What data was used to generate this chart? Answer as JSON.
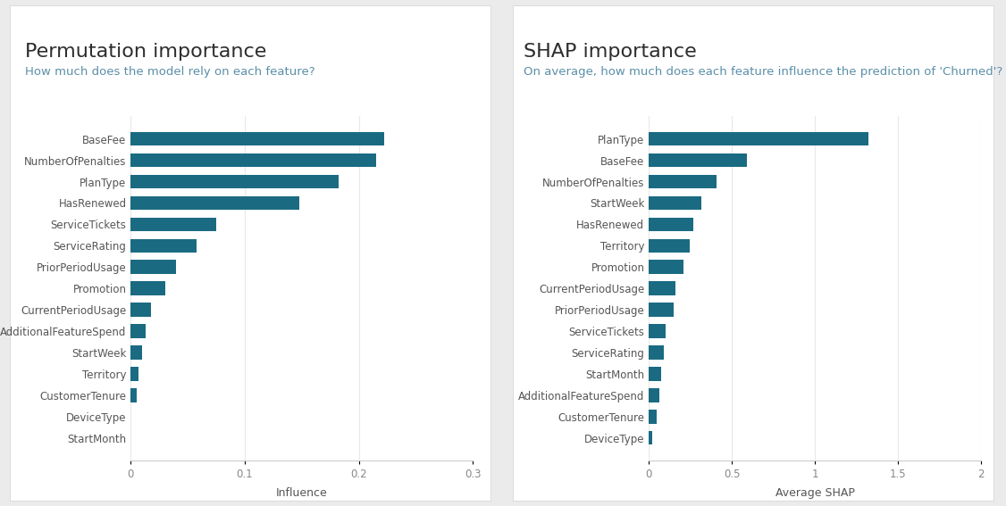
{
  "perm_title": "Permutation importance",
  "perm_subtitle": "How much does the model rely on each feature?",
  "perm_xlabel": "Influence",
  "perm_features": [
    "StartMonth",
    "DeviceType",
    "CustomerTenure",
    "Territory",
    "StartWeek",
    "AdditionalFeatureSpend",
    "CurrentPeriodUsage",
    "Promotion",
    "PriorPeriodUsage",
    "ServiceRating",
    "ServiceTickets",
    "HasRenewed",
    "PlanType",
    "NumberOfPenalties",
    "BaseFee"
  ],
  "perm_values": [
    0.0,
    0.0,
    0.005,
    0.007,
    0.01,
    0.013,
    0.018,
    0.03,
    0.04,
    0.058,
    0.075,
    0.148,
    0.182,
    0.215,
    0.222
  ],
  "perm_xlim": [
    0,
    0.3
  ],
  "perm_xticks": [
    0,
    0.1,
    0.2,
    0.3
  ],
  "shap_title": "SHAP importance",
  "shap_subtitle": "On average, how much does each feature influence the prediction of 'Churned'?",
  "shap_xlabel": "Average SHAP",
  "shap_features": [
    "DeviceType",
    "CustomerTenure",
    "AdditionalFeatureSpend",
    "StartMonth",
    "ServiceRating",
    "ServiceTickets",
    "PriorPeriodUsage",
    "CurrentPeriodUsage",
    "Promotion",
    "Territory",
    "HasRenewed",
    "StartWeek",
    "NumberOfPenalties",
    "BaseFee",
    "PlanType"
  ],
  "shap_values": [
    0.022,
    0.048,
    0.062,
    0.072,
    0.088,
    0.1,
    0.148,
    0.158,
    0.21,
    0.245,
    0.27,
    0.315,
    0.41,
    0.59,
    1.32
  ],
  "shap_xlim": [
    0,
    2
  ],
  "shap_xticks": [
    0,
    0.5,
    1.0,
    1.5,
    2.0
  ],
  "bar_color": "#1a6b82",
  "title_color": "#2d2d2d",
  "subtitle_color": "#5b8fa8",
  "label_color": "#555555",
  "tick_color": "#888888",
  "bg_color": "#ebebeb",
  "panel_bg": "#ffffff",
  "grid_color": "#e8e8e8",
  "title_fontsize": 16,
  "subtitle_fontsize": 9.5,
  "label_fontsize": 8.5,
  "tick_fontsize": 8.5,
  "xlabel_fontsize": 9
}
